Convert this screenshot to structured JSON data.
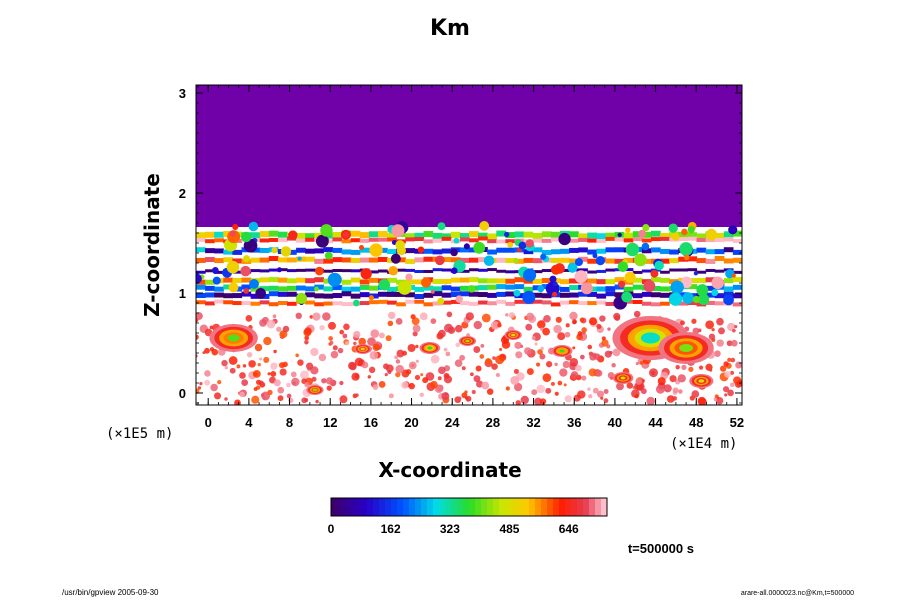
{
  "chart_data": {
    "type": "heatmap",
    "title": "Km",
    "xlabel": "X-coordinate",
    "ylabel": "Z-coordinate",
    "x_unit": "(×1E4 m)",
    "y_unit": "(×1E5 m)",
    "x_ticks": [
      0,
      4,
      8,
      12,
      16,
      20,
      24,
      28,
      32,
      36,
      40,
      44,
      48,
      52
    ],
    "x_range": [
      -1.2,
      52.5
    ],
    "y_ticks": [
      0,
      1,
      2,
      3
    ],
    "y_range": [
      -0.12,
      3.08
    ],
    "colorbar": {
      "ticks": [
        "0",
        "162",
        "323",
        "485",
        "646"
      ],
      "range": [
        0,
        750
      ]
    },
    "time_label": "t=500000 s",
    "bands": [
      {
        "y": 1.58,
        "h": 0.06,
        "value": 420
      },
      {
        "y": 1.53,
        "h": 0.04,
        "value": 700
      },
      {
        "y": 1.42,
        "h": 0.05,
        "value": 150
      },
      {
        "y": 1.33,
        "h": 0.05,
        "value": 620
      },
      {
        "y": 1.22,
        "h": 0.03,
        "value": 20
      },
      {
        "y": 1.12,
        "h": 0.05,
        "value": 560
      },
      {
        "y": 1.05,
        "h": 0.05,
        "value": 280
      },
      {
        "y": 0.98,
        "h": 0.05,
        "value": 60
      },
      {
        "y": 0.9,
        "h": 0.04,
        "value": 700
      }
    ],
    "hotspots": [
      {
        "x": 43.5,
        "y": 0.55,
        "r": 0.22,
        "value": 480
      },
      {
        "x": 47.0,
        "y": 0.45,
        "r": 0.16,
        "value": 600
      },
      {
        "x": 2.5,
        "y": 0.55,
        "r": 0.14,
        "value": 580
      },
      {
        "x": 21.8,
        "y": 0.45,
        "r": 0.06,
        "value": 540
      },
      {
        "x": 34.8,
        "y": 0.42,
        "r": 0.06,
        "value": 560
      },
      {
        "x": 25.5,
        "y": 0.52,
        "r": 0.05,
        "value": 620
      },
      {
        "x": 10.5,
        "y": 0.03,
        "r": 0.05,
        "value": 600
      },
      {
        "x": 40.8,
        "y": 0.15,
        "r": 0.06,
        "value": 640
      },
      {
        "x": 48.5,
        "y": 0.12,
        "r": 0.07,
        "value": 660
      },
      {
        "x": 30.0,
        "y": 0.58,
        "r": 0.05,
        "value": 700
      },
      {
        "x": 15.2,
        "y": 0.44,
        "r": 0.05,
        "value": 700
      }
    ],
    "background_value": 0,
    "grid": false
  },
  "footer": {
    "left": "/usr/bin/gpview 2005-09-30",
    "right": "arare-all.0000023.nc@Km,t=500000"
  },
  "colors": {
    "background_field": "#7000a8",
    "low_activity": "#ffffff"
  }
}
